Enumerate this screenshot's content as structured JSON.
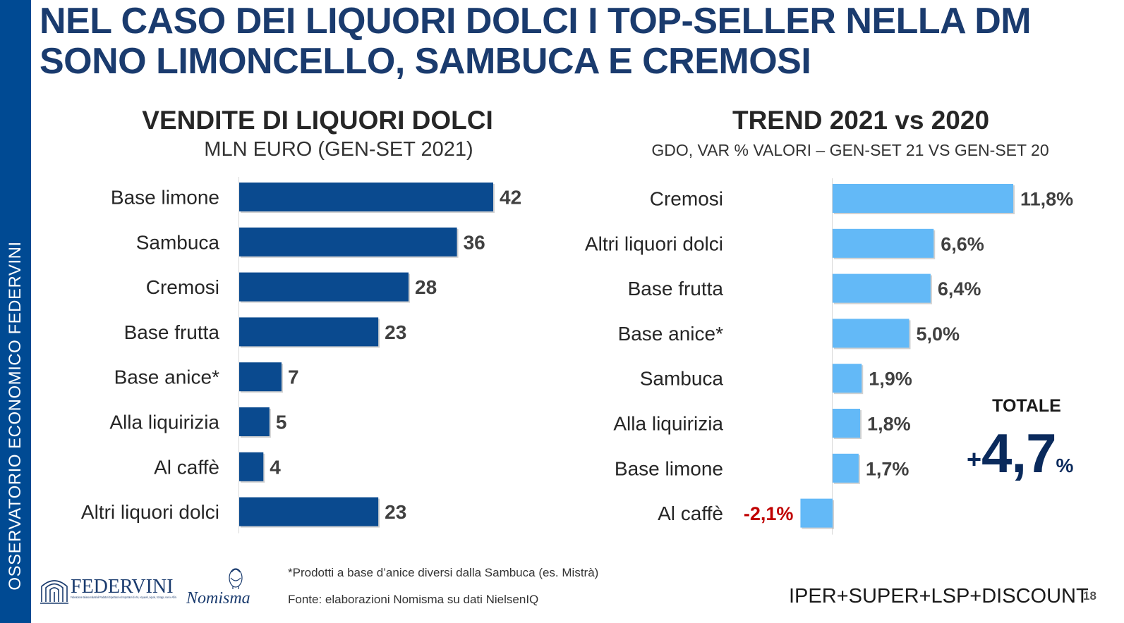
{
  "sidebar": {
    "text": "OSSERVATORIO ECONOMICO  FEDERVINI"
  },
  "title": "NEL CASO DEI LIQUORI DOLCI I TOP-SELLER NELLA DM SONO LIMONCELLO, SAMBUCA E CREMOSI",
  "colors": {
    "sidebar": "#004a93",
    "title": "#1a3b6e",
    "left_bars": "#0a4a8f",
    "right_bars": "#63b9f7",
    "negative_label": "#c00000",
    "total": "#0a2a5c"
  },
  "chart_data": [
    {
      "type": "bar",
      "orientation": "horizontal",
      "title": "VENDITE DI LIQUORI DOLCI",
      "subtitle": "MLN EURO (GEN-SET 2021)",
      "categories": [
        "Base limone",
        "Sambuca",
        "Cremosi",
        "Base frutta",
        "Base anice*",
        "Alla liquirizia",
        "Al caffè",
        "Altri liquori dolci"
      ],
      "values": [
        42,
        36,
        28,
        23,
        7,
        5,
        4,
        23
      ],
      "labels": [
        "42",
        "36",
        "28",
        "23",
        "7",
        "5",
        "4",
        "23"
      ],
      "xlim": [
        0,
        42
      ]
    },
    {
      "type": "bar",
      "orientation": "horizontal",
      "title": "TREND 2021 vs 2020",
      "subtitle": "GDO, VAR % VALORI – GEN-SET 21 VS GEN-SET 20",
      "categories": [
        "Cremosi",
        "Altri liquori dolci",
        "Base frutta",
        "Base anice*",
        "Sambuca",
        "Alla liquirizia",
        "Base limone",
        "Al caffè"
      ],
      "values": [
        11.8,
        6.6,
        6.4,
        5.0,
        1.9,
        1.8,
        1.7,
        -2.1
      ],
      "labels": [
        "11,8%",
        "6,6%",
        "6,4%",
        "5,0%",
        "1,9%",
        "1,8%",
        "1,7%",
        "-2,1%"
      ],
      "xlim": [
        -2.1,
        11.8
      ]
    }
  ],
  "total": {
    "label": "TOTALE",
    "sign": "+",
    "value": "4,7",
    "unit": "%"
  },
  "footnote": "*Prodotti a base d’anice diversi dalla Sambuca (es. Mistrà)",
  "source": "Fonte: elaborazioni Nomisma su dati NielsenIQ",
  "channels": "IPER+SUPER+LSP+DISCOUNT",
  "page_number": "18",
  "logos": {
    "federvini": "FEDERVINI",
    "federvini_tagline": "Federazione Italiana Industriali Produttori Esportatori ed Importatori di Vini, Acquaviti, Liquori, Sciroppi, Aceti e Affini",
    "nomisma": "Nomisma"
  }
}
